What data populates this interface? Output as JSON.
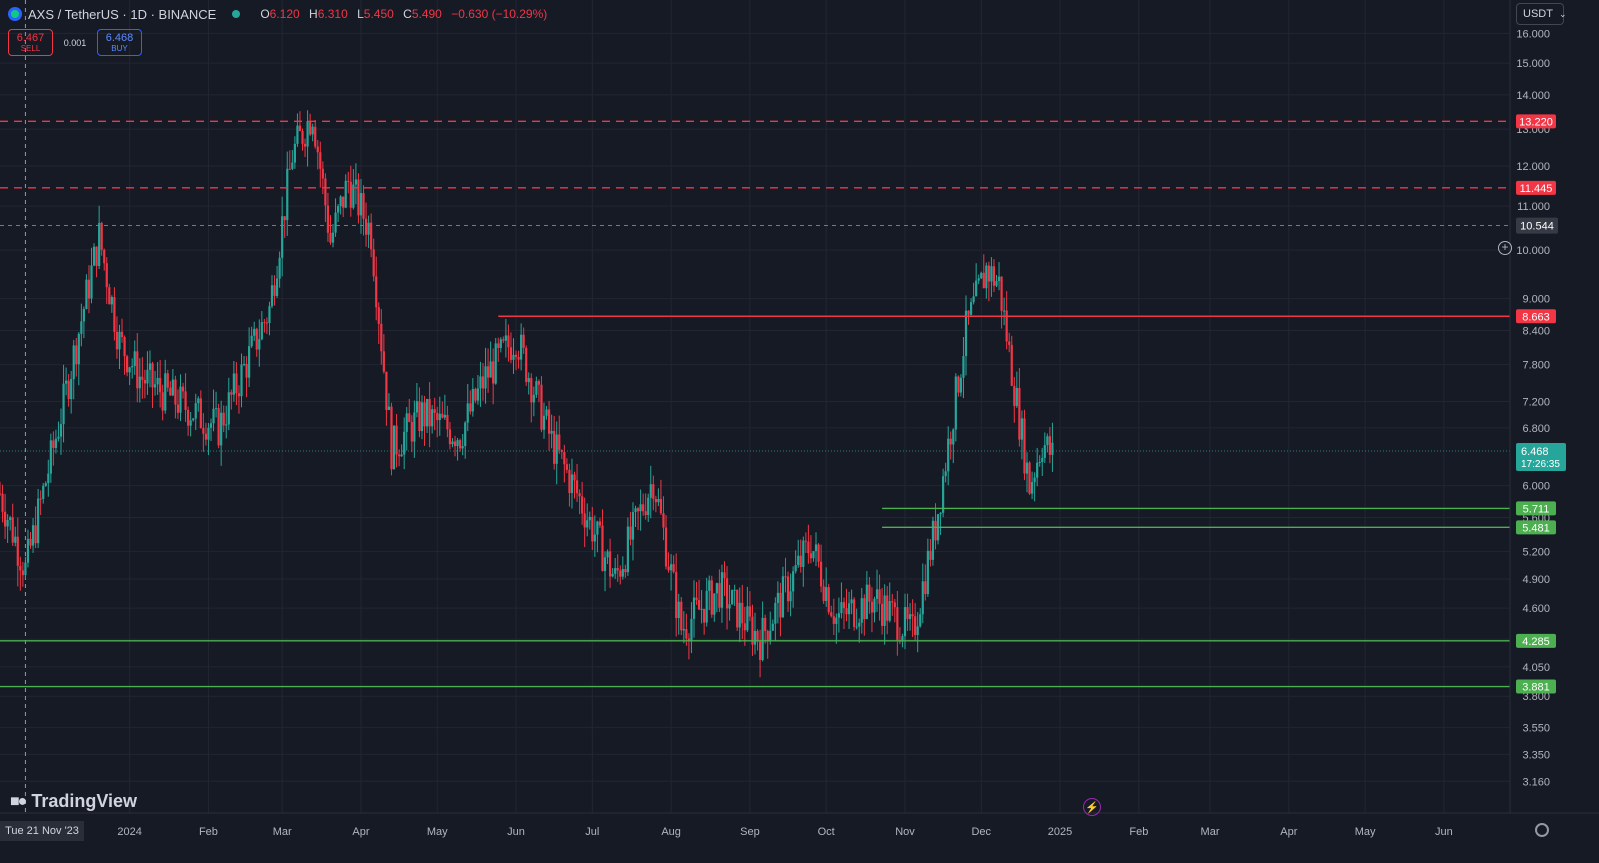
{
  "header": {
    "symbol": "AXS / TetherUS · 1D · BINANCE",
    "open_label": "O",
    "open": "6.120",
    "high_label": "H",
    "high": "6.310",
    "low_label": "L",
    "low": "5.450",
    "close_label": "C",
    "close": "5.490",
    "change": "−0.630 (−10.29%)"
  },
  "trade": {
    "sell_price": "6.467",
    "sell_label": "SELL",
    "spread": "0.001",
    "buy_price": "6.468",
    "buy_label": "BUY"
  },
  "currency_button": "USDT",
  "brand": "TradingView",
  "crosshair_date": "Tue 21 Nov '23",
  "colors": {
    "background": "#161a25",
    "up": "#26a69a",
    "down": "#f23645",
    "resistance": "#f23645",
    "support": "#4caf50",
    "grid": "#232632"
  },
  "chart_data": {
    "type": "candlestick",
    "title": "AXS / TetherUS · 1D · BINANCE",
    "y_scale": "log",
    "ylim": [
      2.95,
      17.2
    ],
    "xlim": [
      "2023-11-11",
      "2025-06-27"
    ],
    "y_ticks": [
      "16.000",
      "15.000",
      "14.000",
      "13.000",
      "12.000",
      "11.000",
      "10.000",
      "9.000",
      "8.400",
      "7.800",
      "7.200",
      "6.800",
      "6.000",
      "5.600",
      "5.200",
      "4.900",
      "4.600",
      "4.300",
      "4.050",
      "3.800",
      "3.550",
      "3.350",
      "3.160"
    ],
    "x_ticks": [
      {
        "date": "2024-01-01",
        "label": "2024"
      },
      {
        "date": "2024-02-01",
        "label": "Feb"
      },
      {
        "date": "2024-03-01",
        "label": "Mar"
      },
      {
        "date": "2024-04-01",
        "label": "Apr"
      },
      {
        "date": "2024-05-01",
        "label": "May"
      },
      {
        "date": "2024-06-01",
        "label": "Jun"
      },
      {
        "date": "2024-07-01",
        "label": "Jul"
      },
      {
        "date": "2024-08-01",
        "label": "Aug"
      },
      {
        "date": "2024-09-01",
        "label": "Sep"
      },
      {
        "date": "2024-10-01",
        "label": "Oct"
      },
      {
        "date": "2024-11-01",
        "label": "Nov"
      },
      {
        "date": "2024-12-01",
        "label": "Dec"
      },
      {
        "date": "2025-01-01",
        "label": "2025"
      },
      {
        "date": "2025-02-01",
        "label": "Feb"
      },
      {
        "date": "2025-03-01",
        "label": "Mar"
      },
      {
        "date": "2025-04-01",
        "label": "Apr"
      },
      {
        "date": "2025-05-01",
        "label": "May"
      },
      {
        "date": "2025-06-01",
        "label": "Jun"
      }
    ],
    "price_path": [
      [
        "2023-11-11",
        5.9
      ],
      [
        "2023-11-21",
        5.0
      ],
      [
        "2023-12-05",
        7.0
      ],
      [
        "2023-12-20",
        10.3
      ],
      [
        "2023-12-28",
        8.2
      ],
      [
        "2024-01-05",
        7.6
      ],
      [
        "2024-01-20",
        7.2
      ],
      [
        "2024-02-05",
        6.8
      ],
      [
        "2024-02-25",
        8.8
      ],
      [
        "2024-03-05",
        12.3
      ],
      [
        "2024-03-13",
        13.5
      ],
      [
        "2024-03-20",
        10.2
      ],
      [
        "2024-03-27",
        11.6
      ],
      [
        "2024-04-05",
        10.4
      ],
      [
        "2024-04-13",
        6.5
      ],
      [
        "2024-04-25",
        7.0
      ],
      [
        "2024-05-10",
        6.7
      ],
      [
        "2024-05-20",
        7.6
      ],
      [
        "2024-06-01",
        8.3
      ],
      [
        "2024-06-15",
        6.6
      ],
      [
        "2024-06-25",
        5.9
      ],
      [
        "2024-07-10",
        4.9
      ],
      [
        "2024-07-25",
        6.1
      ],
      [
        "2024-08-05",
        4.4
      ],
      [
        "2024-08-20",
        4.8
      ],
      [
        "2024-09-05",
        4.3
      ],
      [
        "2024-09-25",
        5.3
      ],
      [
        "2024-10-05",
        4.5
      ],
      [
        "2024-10-20",
        4.7
      ],
      [
        "2024-11-04",
        4.35
      ],
      [
        "2024-11-13",
        5.5
      ],
      [
        "2024-11-25",
        8.4
      ],
      [
        "2024-12-03",
        9.6
      ],
      [
        "2024-12-08",
        9.3
      ],
      [
        "2024-12-12",
        8.0
      ],
      [
        "2024-12-20",
        6.0
      ],
      [
        "2024-12-25",
        6.6
      ],
      [
        "2024-12-29",
        6.4
      ]
    ],
    "last_price": "6.468",
    "countdown": "17:26:35",
    "crosshair_price": "10.544",
    "levels": [
      {
        "name": "resistance",
        "price": "13.220",
        "style": "dashed",
        "color": "#f23645",
        "from": "2023-11-11"
      },
      {
        "name": "resistance",
        "price": "11.445",
        "style": "dashed",
        "color": "#f23645",
        "from": "2023-11-11"
      },
      {
        "name": "resistance",
        "price": "8.663",
        "style": "solid",
        "color": "#f23645",
        "from": "2024-05-25"
      },
      {
        "name": "support",
        "price": "5.711",
        "style": "solid",
        "color": "#4caf50",
        "from": "2024-10-23"
      },
      {
        "name": "support",
        "price": "5.481",
        "style": "solid",
        "color": "#4caf50",
        "from": "2024-10-23"
      },
      {
        "name": "support",
        "price": "4.285",
        "style": "solid",
        "color": "#4caf50",
        "from": "2023-11-11"
      },
      {
        "name": "support",
        "price": "3.881",
        "style": "solid",
        "color": "#4caf50",
        "from": "2023-11-11"
      }
    ]
  }
}
